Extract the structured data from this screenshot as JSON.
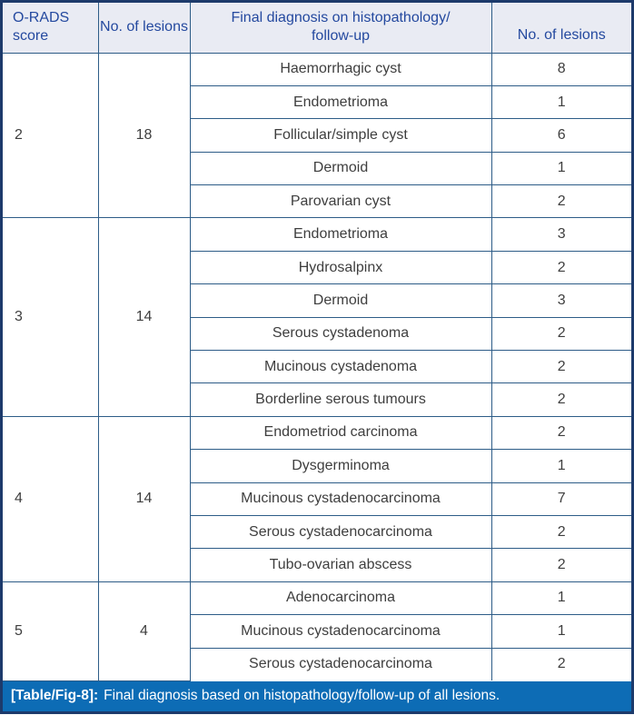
{
  "header": {
    "score": "O-RADS score",
    "count": "No. of lesions",
    "diagnosis_line1": "Final diagnosis on histopathology/",
    "diagnosis_line2": "follow-up",
    "lesions": "No. of lesions"
  },
  "groups": [
    {
      "score": "2",
      "count": "18",
      "rows": [
        {
          "diagnosis": "Haemorrhagic cyst",
          "n": "8"
        },
        {
          "diagnosis": "Endometrioma",
          "n": "1"
        },
        {
          "diagnosis": "Follicular/simple cyst",
          "n": "6"
        },
        {
          "diagnosis": "Dermoid",
          "n": "1"
        },
        {
          "diagnosis": "Parovarian cyst",
          "n": "2"
        }
      ]
    },
    {
      "score": "3",
      "count": "14",
      "rows": [
        {
          "diagnosis": "Endometrioma",
          "n": "3"
        },
        {
          "diagnosis": "Hydrosalpinx",
          "n": "2"
        },
        {
          "diagnosis": "Dermoid",
          "n": "3"
        },
        {
          "diagnosis": "Serous cystadenoma",
          "n": "2"
        },
        {
          "diagnosis": "Mucinous cystadenoma",
          "n": "2"
        },
        {
          "diagnosis": "Borderline serous tumours",
          "n": "2"
        }
      ]
    },
    {
      "score": "4",
      "count": "14",
      "rows": [
        {
          "diagnosis": "Endometriod carcinoma",
          "n": "2"
        },
        {
          "diagnosis": "Dysgerminoma",
          "n": "1"
        },
        {
          "diagnosis": "Mucinous cystadenocarcinoma",
          "n": "7"
        },
        {
          "diagnosis": "Serous cystadenocarcinoma",
          "n": "2"
        },
        {
          "diagnosis": "Tubo-ovarian abscess",
          "n": "2"
        }
      ]
    },
    {
      "score": "5",
      "count": "4",
      "rows": [
        {
          "diagnosis": "Adenocarcinoma",
          "n": "1"
        },
        {
          "diagnosis": "Mucinous cystadenocarcinoma",
          "n": "1"
        },
        {
          "diagnosis": "Serous cystadenocarcinoma",
          "n": "2"
        }
      ]
    }
  ],
  "caption": {
    "label": "[Table/Fig-8]:",
    "text": "Final diagnosis based on histopathology/follow-up of all lesions."
  },
  "colors": {
    "header_bg": "#e9ebf3",
    "header_text": "#24499f",
    "grid_line": "#2d5c87",
    "outer_border": "#1d3a6b",
    "body_text": "#3e3e3e",
    "caption_bg": "#0d6cb5",
    "caption_text": "#ffffff"
  }
}
